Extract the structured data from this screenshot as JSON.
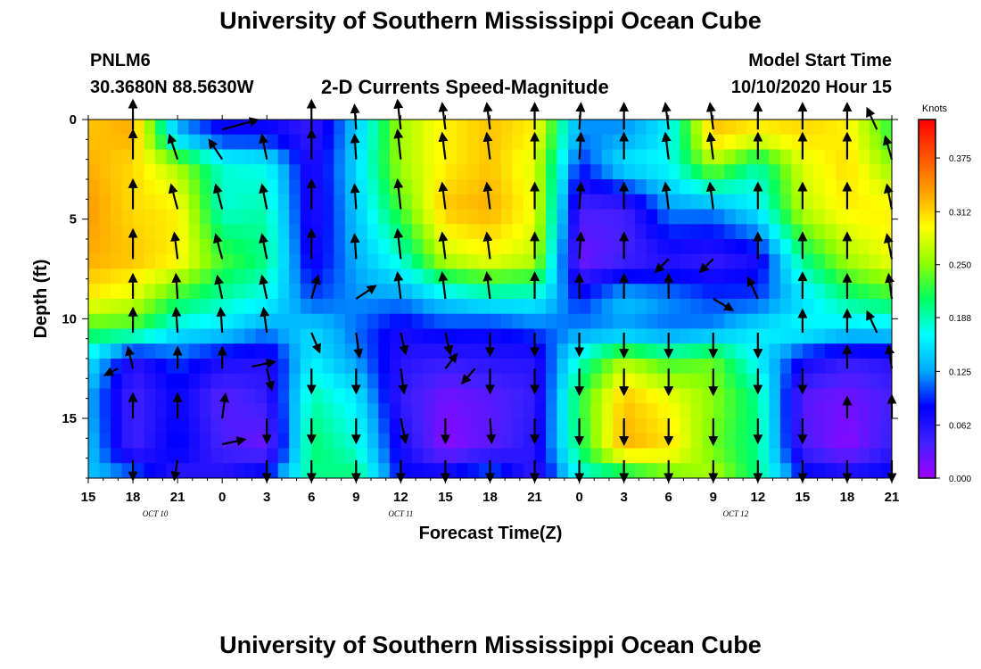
{
  "header": {
    "title": "University of Southern Mississippi Ocean Cube",
    "footer_title": "University of Southern Mississippi Ocean Cube",
    "station_id": "PNLM6",
    "station_coords": "30.3680N 88.5630W",
    "subtitle": "2-D Currents Speed-Magnitude",
    "model_start_label": "Model Start Time",
    "model_start_value": "10/10/2020 Hour 15"
  },
  "chart_data": {
    "type": "heatmap",
    "title": "2-D Currents Speed-Magnitude",
    "xlabel": "Forecast Time(Z)",
    "ylabel": "Depth (ft)",
    "x_tick_labels": [
      "15",
      "18",
      "21",
      "0",
      "3",
      "6",
      "9",
      "12",
      "15",
      "18",
      "21",
      "0",
      "3",
      "6",
      "9",
      "12",
      "15",
      "18",
      "21"
    ],
    "x_tick_hours": [
      0,
      3,
      6,
      9,
      12,
      15,
      18,
      21,
      24,
      27,
      30,
      33,
      36,
      39,
      42,
      45,
      48,
      51,
      54
    ],
    "date_labels": [
      {
        "label": "OCT 10",
        "hour": 4.5
      },
      {
        "label": "OCT 11",
        "hour": 21
      },
      {
        "label": "OCT 12",
        "hour": 43.5
      }
    ],
    "y_ticks": [
      0,
      5,
      10,
      15
    ],
    "ylim": [
      0,
      18
    ],
    "y_inverted": true,
    "xlim": [
      0,
      54
    ],
    "colorbar": {
      "unit": "Knots",
      "ticks": [
        "0.000",
        "0.062",
        "0.125",
        "0.188",
        "0.250",
        "0.312",
        "0.375"
      ],
      "min": 0.0,
      "max": 0.42,
      "colors": [
        "#a000ff",
        "#4020ff",
        "#0000ff",
        "#00aaff",
        "#00ffff",
        "#00ff60",
        "#90ff00",
        "#ffff00",
        "#ffa000",
        "#ff5000",
        "#ff0000"
      ]
    },
    "depth_bands": [
      0.75,
      2.25,
      4.5,
      7.0,
      9.0,
      10.6,
      12.0,
      14.0,
      16.5,
      17.6
    ],
    "time_hours": [
      0,
      3,
      6,
      9,
      12,
      15,
      18,
      21,
      24,
      27,
      30,
      33,
      36,
      39,
      42,
      45,
      48,
      51,
      54
    ],
    "speed_knots": [
      [
        0.32,
        0.33,
        0.13,
        0.08,
        0.08,
        0.05,
        0.14,
        0.26,
        0.3,
        0.32,
        0.3,
        0.12,
        0.12,
        0.16,
        0.32,
        0.3,
        0.31,
        0.3,
        0.22
      ],
      [
        0.33,
        0.31,
        0.26,
        0.18,
        0.17,
        0.06,
        0.15,
        0.26,
        0.3,
        0.32,
        0.28,
        0.09,
        0.16,
        0.17,
        0.26,
        0.19,
        0.28,
        0.31,
        0.25
      ],
      [
        0.34,
        0.31,
        0.3,
        0.18,
        0.19,
        0.06,
        0.14,
        0.23,
        0.32,
        0.33,
        0.29,
        0.04,
        0.04,
        0.12,
        0.12,
        0.16,
        0.27,
        0.3,
        0.3
      ],
      [
        0.33,
        0.32,
        0.3,
        0.23,
        0.2,
        0.07,
        0.13,
        0.18,
        0.27,
        0.29,
        0.27,
        0.02,
        0.04,
        0.06,
        0.05,
        0.07,
        0.2,
        0.26,
        0.29
      ],
      [
        0.3,
        0.28,
        0.22,
        0.19,
        0.17,
        0.1,
        0.12,
        0.12,
        0.15,
        0.17,
        0.17,
        0.09,
        0.14,
        0.12,
        0.1,
        0.1,
        0.15,
        0.2,
        0.22
      ],
      [
        0.22,
        0.22,
        0.16,
        0.15,
        0.12,
        0.15,
        0.11,
        0.07,
        0.09,
        0.08,
        0.1,
        0.12,
        0.12,
        0.11,
        0.12,
        0.16,
        0.17,
        0.15,
        0.15
      ],
      [
        0.16,
        0.06,
        0.1,
        0.07,
        0.06,
        0.16,
        0.12,
        0.06,
        0.05,
        0.06,
        0.06,
        0.18,
        0.26,
        0.22,
        0.24,
        0.16,
        0.08,
        0.05,
        0.06
      ],
      [
        0.13,
        0.04,
        0.08,
        0.03,
        0.05,
        0.19,
        0.16,
        0.05,
        0.02,
        0.03,
        0.05,
        0.22,
        0.32,
        0.29,
        0.25,
        0.2,
        0.03,
        0.02,
        0.04
      ],
      [
        0.14,
        0.04,
        0.09,
        0.04,
        0.02,
        0.21,
        0.18,
        0.07,
        0.01,
        0.03,
        0.06,
        0.21,
        0.33,
        0.31,
        0.24,
        0.2,
        0.04,
        0.01,
        0.05
      ],
      [
        0.14,
        0.1,
        0.06,
        0.06,
        0.08,
        0.2,
        0.2,
        0.08,
        0.07,
        0.1,
        0.05,
        0.18,
        0.22,
        0.25,
        0.26,
        0.2,
        0.08,
        0.06,
        0.08
      ]
    ],
    "arrows": [
      {
        "t": 3,
        "d": 0.5,
        "u": 0,
        "v": -1.8
      },
      {
        "t": 9,
        "d": 0.5,
        "u": 2.2,
        "v": -0.6
      },
      {
        "t": 15,
        "d": 0.5,
        "u": 0,
        "v": -1.8
      },
      {
        "t": 18,
        "d": 0.5,
        "u": -0.1,
        "v": -1.5
      },
      {
        "t": 21,
        "d": 0.5,
        "u": -0.2,
        "v": -1.8
      },
      {
        "t": 24,
        "d": 0.5,
        "u": -0.2,
        "v": -1.6
      },
      {
        "t": 27,
        "d": 0.5,
        "u": -0.2,
        "v": -1.6
      },
      {
        "t": 30,
        "d": 0.5,
        "u": 0,
        "v": -1.6
      },
      {
        "t": 33,
        "d": 0.5,
        "u": 0.1,
        "v": -1.6
      },
      {
        "t": 36,
        "d": 0.5,
        "u": 0,
        "v": -1.6
      },
      {
        "t": 39,
        "d": 0.5,
        "u": -0.2,
        "v": -1.6
      },
      {
        "t": 42,
        "d": 0.5,
        "u": -0.2,
        "v": -1.6
      },
      {
        "t": 45,
        "d": 0.5,
        "u": 0,
        "v": -1.6
      },
      {
        "t": 48,
        "d": 0.5,
        "u": 0,
        "v": -1.6
      },
      {
        "t": 51,
        "d": 0.5,
        "u": 0,
        "v": -1.6
      },
      {
        "t": 53,
        "d": 0.5,
        "u": -0.6,
        "v": -1.3
      },
      {
        "t": 3,
        "d": 2.0,
        "u": 0,
        "v": -1.8
      },
      {
        "t": 6,
        "d": 2.0,
        "u": -0.5,
        "v": -1.5
      },
      {
        "t": 9,
        "d": 2.0,
        "u": -0.8,
        "v": -1.2
      },
      {
        "t": 12,
        "d": 2.0,
        "u": -0.3,
        "v": -1.5
      },
      {
        "t": 15,
        "d": 2.0,
        "u": 0,
        "v": -1.8
      },
      {
        "t": 18,
        "d": 2.0,
        "u": -0.1,
        "v": -1.5
      },
      {
        "t": 21,
        "d": 2.0,
        "u": -0.2,
        "v": -1.8
      },
      {
        "t": 24,
        "d": 2.0,
        "u": -0.2,
        "v": -1.6
      },
      {
        "t": 27,
        "d": 2.0,
        "u": -0.2,
        "v": -1.6
      },
      {
        "t": 30,
        "d": 2.0,
        "u": 0,
        "v": -1.6
      },
      {
        "t": 33,
        "d": 2.0,
        "u": 0.1,
        "v": -1.6
      },
      {
        "t": 36,
        "d": 2.0,
        "u": 0,
        "v": -1.6
      },
      {
        "t": 39,
        "d": 2.0,
        "u": -0.2,
        "v": -1.6
      },
      {
        "t": 42,
        "d": 2.0,
        "u": -0.2,
        "v": -1.6
      },
      {
        "t": 45,
        "d": 2.0,
        "u": 0,
        "v": -1.6
      },
      {
        "t": 48,
        "d": 2.0,
        "u": 0,
        "v": -1.6
      },
      {
        "t": 51,
        "d": 2.0,
        "u": 0,
        "v": -1.6
      },
      {
        "t": 54,
        "d": 2.0,
        "u": -0.4,
        "v": -1.4
      },
      {
        "t": 3,
        "d": 4.5,
        "u": 0,
        "v": -1.8
      },
      {
        "t": 6,
        "d": 4.5,
        "u": -0.4,
        "v": -1.5
      },
      {
        "t": 9,
        "d": 4.5,
        "u": -0.4,
        "v": -1.5
      },
      {
        "t": 12,
        "d": 4.5,
        "u": -0.3,
        "v": -1.5
      },
      {
        "t": 15,
        "d": 4.5,
        "u": 0,
        "v": -1.8
      },
      {
        "t": 18,
        "d": 4.5,
        "u": -0.1,
        "v": -1.5
      },
      {
        "t": 21,
        "d": 4.5,
        "u": -0.2,
        "v": -1.8
      },
      {
        "t": 24,
        "d": 4.5,
        "u": -0.2,
        "v": -1.6
      },
      {
        "t": 27,
        "d": 4.5,
        "u": -0.2,
        "v": -1.6
      },
      {
        "t": 30,
        "d": 4.5,
        "u": 0,
        "v": -1.6
      },
      {
        "t": 33,
        "d": 4.5,
        "u": 0.1,
        "v": -1.6
      },
      {
        "t": 36,
        "d": 4.5,
        "u": 0,
        "v": -1.6
      },
      {
        "t": 39,
        "d": 4.5,
        "u": -0.2,
        "v": -1.6
      },
      {
        "t": 42,
        "d": 4.5,
        "u": -0.2,
        "v": -1.6
      },
      {
        "t": 45,
        "d": 4.5,
        "u": 0,
        "v": -1.6
      },
      {
        "t": 48,
        "d": 4.5,
        "u": 0,
        "v": -1.6
      },
      {
        "t": 51,
        "d": 4.5,
        "u": 0,
        "v": -1.6
      },
      {
        "t": 54,
        "d": 4.5,
        "u": -0.3,
        "v": -1.5
      },
      {
        "t": 3,
        "d": 7.0,
        "u": 0,
        "v": -1.8
      },
      {
        "t": 6,
        "d": 7.0,
        "u": -0.2,
        "v": -1.6
      },
      {
        "t": 9,
        "d": 7.0,
        "u": -0.4,
        "v": -1.5
      },
      {
        "t": 12,
        "d": 7.0,
        "u": -0.3,
        "v": -1.5
      },
      {
        "t": 15,
        "d": 7.0,
        "u": 0,
        "v": -1.8
      },
      {
        "t": 18,
        "d": 7.0,
        "u": -0.1,
        "v": -1.5
      },
      {
        "t": 21,
        "d": 7.0,
        "u": -0.2,
        "v": -1.8
      },
      {
        "t": 24,
        "d": 7.0,
        "u": -0.2,
        "v": -1.6
      },
      {
        "t": 27,
        "d": 7.0,
        "u": -0.2,
        "v": -1.6
      },
      {
        "t": 30,
        "d": 7.0,
        "u": 0,
        "v": -1.6
      },
      {
        "t": 33,
        "d": 7.0,
        "u": 0.1,
        "v": -1.6
      },
      {
        "t": 36,
        "d": 7.0,
        "u": 0,
        "v": -1.6
      },
      {
        "t": 39,
        "d": 7.0,
        "u": -0.8,
        "v": 0.8
      },
      {
        "t": 42,
        "d": 7.0,
        "u": -0.8,
        "v": 0.8
      },
      {
        "t": 45,
        "d": 7.0,
        "u": 0,
        "v": -1.6
      },
      {
        "t": 48,
        "d": 7.0,
        "u": 0,
        "v": -1.6
      },
      {
        "t": 51,
        "d": 7.0,
        "u": 0,
        "v": -1.6
      },
      {
        "t": 54,
        "d": 7.0,
        "u": -0.3,
        "v": -1.5
      },
      {
        "t": 3,
        "d": 9.0,
        "u": 0,
        "v": -1.5
      },
      {
        "t": 6,
        "d": 9.0,
        "u": -0.1,
        "v": -1.5
      },
      {
        "t": 9,
        "d": 9.0,
        "u": -0.3,
        "v": -1.4
      },
      {
        "t": 12,
        "d": 9.0,
        "u": -0.3,
        "v": -1.4
      },
      {
        "t": 15,
        "d": 9.0,
        "u": 0.4,
        "v": -1.4
      },
      {
        "t": 18,
        "d": 9.0,
        "u": 1.2,
        "v": -0.8
      },
      {
        "t": 21,
        "d": 9.0,
        "u": -0.2,
        "v": -1.6
      },
      {
        "t": 24,
        "d": 9.0,
        "u": -0.2,
        "v": -1.6
      },
      {
        "t": 27,
        "d": 9.0,
        "u": -0.2,
        "v": -1.6
      },
      {
        "t": 30,
        "d": 9.0,
        "u": 0,
        "v": -1.6
      },
      {
        "t": 33,
        "d": 9.0,
        "u": 0,
        "v": -1.5
      },
      {
        "t": 36,
        "d": 9.0,
        "u": 0,
        "v": -1.5
      },
      {
        "t": 39,
        "d": 9.0,
        "u": 0,
        "v": -1.5
      },
      {
        "t": 42,
        "d": 9.0,
        "u": 1.2,
        "v": 0.7
      },
      {
        "t": 45,
        "d": 9.0,
        "u": -0.6,
        "v": -1.3
      },
      {
        "t": 48,
        "d": 9.0,
        "u": 0,
        "v": -1.6
      },
      {
        "t": 51,
        "d": 9.0,
        "u": 0,
        "v": -1.5
      },
      {
        "t": 54,
        "d": 9.0,
        "u": -0.2,
        "v": -1.5
      },
      {
        "t": 3,
        "d": 10.7,
        "u": 0,
        "v": -1.5
      },
      {
        "t": 6,
        "d": 10.7,
        "u": -0.1,
        "v": -1.5
      },
      {
        "t": 9,
        "d": 10.7,
        "u": -0.1,
        "v": -1.5
      },
      {
        "t": 12,
        "d": 10.7,
        "u": -0.2,
        "v": -1.5
      },
      {
        "t": 15,
        "d": 10.7,
        "u": 0.5,
        "v": 1.2
      },
      {
        "t": 18,
        "d": 10.7,
        "u": 0.2,
        "v": 1.5
      },
      {
        "t": 21,
        "d": 10.7,
        "u": 0.3,
        "v": 1.3
      },
      {
        "t": 24,
        "d": 10.7,
        "u": 0.3,
        "v": 1.3
      },
      {
        "t": 27,
        "d": 10.7,
        "u": 0,
        "v": 1.4
      },
      {
        "t": 30,
        "d": 10.7,
        "u": 0,
        "v": 1.4
      },
      {
        "t": 33,
        "d": 10.7,
        "u": 0,
        "v": 1.4
      },
      {
        "t": 36,
        "d": 10.7,
        "u": 0,
        "v": 1.5
      },
      {
        "t": 39,
        "d": 10.7,
        "u": 0,
        "v": 1.5
      },
      {
        "t": 42,
        "d": 10.7,
        "u": 0,
        "v": 1.5
      },
      {
        "t": 45,
        "d": 10.7,
        "u": 0,
        "v": 1.5
      },
      {
        "t": 48,
        "d": 10.7,
        "u": 0,
        "v": -1.4
      },
      {
        "t": 51,
        "d": 10.7,
        "u": 0,
        "v": -1.4
      },
      {
        "t": 53,
        "d": 10.7,
        "u": -0.6,
        "v": -1.3
      },
      {
        "t": 2,
        "d": 12.5,
        "u": -0.8,
        "v": 0.4
      },
      {
        "t": 3,
        "d": 12.5,
        "u": -0.3,
        "v": -1.3
      },
      {
        "t": 6,
        "d": 12.5,
        "u": 0,
        "v": -1.3
      },
      {
        "t": 9,
        "d": 12.5,
        "u": 0,
        "v": -1.3
      },
      {
        "t": 11,
        "d": 12.4,
        "u": 1.4,
        "v": -0.3
      },
      {
        "t": 12,
        "d": 12.5,
        "u": 0.3,
        "v": 1.3
      },
      {
        "t": 15,
        "d": 12.5,
        "u": 0,
        "v": 1.5
      },
      {
        "t": 18,
        "d": 12.5,
        "u": 0,
        "v": 1.5
      },
      {
        "t": 21,
        "d": 12.5,
        "u": 0.2,
        "v": 1.5
      },
      {
        "t": 24,
        "d": 12.5,
        "u": 0.7,
        "v": -0.9
      },
      {
        "t": 26,
        "d": 12.5,
        "u": -0.8,
        "v": 0.9
      },
      {
        "t": 27,
        "d": 12.5,
        "u": 0,
        "v": 1.5
      },
      {
        "t": 30,
        "d": 12.5,
        "u": 0,
        "v": 1.5
      },
      {
        "t": 33,
        "d": 12.5,
        "u": 0,
        "v": 1.6
      },
      {
        "t": 36,
        "d": 12.5,
        "u": 0,
        "v": 1.6
      },
      {
        "t": 39,
        "d": 12.5,
        "u": 0,
        "v": 1.6
      },
      {
        "t": 42,
        "d": 12.5,
        "u": 0,
        "v": 1.6
      },
      {
        "t": 45,
        "d": 12.5,
        "u": 0,
        "v": 1.5
      },
      {
        "t": 48,
        "d": 12.5,
        "u": 0,
        "v": 1.5
      },
      {
        "t": 51,
        "d": 12.5,
        "u": 0,
        "v": -1.4
      },
      {
        "t": 54,
        "d": 12.5,
        "u": -0.2,
        "v": -1.4
      },
      {
        "t": 3,
        "d": 15.0,
        "u": 0,
        "v": -1.5
      },
      {
        "t": 6,
        "d": 15.0,
        "u": 0,
        "v": -1.5
      },
      {
        "t": 9,
        "d": 15.0,
        "u": 0.2,
        "v": -1.5
      },
      {
        "t": 12,
        "d": 15.0,
        "u": 0,
        "v": 1.5
      },
      {
        "t": 15,
        "d": 15.0,
        "u": 0,
        "v": 1.5
      },
      {
        "t": 18,
        "d": 15.0,
        "u": 0,
        "v": 1.5
      },
      {
        "t": 21,
        "d": 15.0,
        "u": 0.3,
        "v": 1.5
      },
      {
        "t": 24,
        "d": 15.0,
        "u": 0,
        "v": 1.5
      },
      {
        "t": 27,
        "d": 15.0,
        "u": 0.1,
        "v": 1.5
      },
      {
        "t": 30,
        "d": 15.0,
        "u": 0,
        "v": 1.5
      },
      {
        "t": 33,
        "d": 15.0,
        "u": 0,
        "v": 1.6
      },
      {
        "t": 36,
        "d": 15.0,
        "u": 0,
        "v": 1.6
      },
      {
        "t": 39,
        "d": 15.0,
        "u": 0,
        "v": 1.6
      },
      {
        "t": 42,
        "d": 15.0,
        "u": 0,
        "v": 1.6
      },
      {
        "t": 45,
        "d": 15.0,
        "u": 0,
        "v": 1.5
      },
      {
        "t": 48,
        "d": 15.0,
        "u": 0,
        "v": 1.5
      },
      {
        "t": 51,
        "d": 15.0,
        "u": 0,
        "v": -1.3
      },
      {
        "t": 54,
        "d": 15.0,
        "u": 0,
        "v": -1.4
      },
      {
        "t": 3,
        "d": 17.1,
        "u": 0,
        "v": 1.2
      },
      {
        "t": 6,
        "d": 17.1,
        "u": -0.2,
        "v": 1.2
      },
      {
        "t": 9,
        "d": 16.3,
        "u": 1.4,
        "v": -0.3
      },
      {
        "t": 12,
        "d": 17.1,
        "u": 0,
        "v": 1.3
      },
      {
        "t": 15,
        "d": 17.1,
        "u": 0,
        "v": 1.3
      },
      {
        "t": 18,
        "d": 17.1,
        "u": 0,
        "v": 1.3
      },
      {
        "t": 21,
        "d": 17.1,
        "u": 0,
        "v": 1.3
      },
      {
        "t": 24,
        "d": 17.1,
        "u": 0,
        "v": 1.3
      },
      {
        "t": 27,
        "d": 17.1,
        "u": 0,
        "v": 1.3
      },
      {
        "t": 30,
        "d": 17.1,
        "u": 0,
        "v": 1.3
      },
      {
        "t": 33,
        "d": 17.1,
        "u": 0,
        "v": 1.3
      },
      {
        "t": 36,
        "d": 17.1,
        "u": 0,
        "v": 1.3
      },
      {
        "t": 39,
        "d": 17.1,
        "u": 0,
        "v": 1.3
      },
      {
        "t": 42,
        "d": 17.1,
        "u": 0,
        "v": 1.3
      },
      {
        "t": 45,
        "d": 17.1,
        "u": 0,
        "v": 1.3
      },
      {
        "t": 48,
        "d": 17.1,
        "u": 0,
        "v": 1.3
      },
      {
        "t": 51,
        "d": 17.1,
        "u": 0,
        "v": 1.3
      },
      {
        "t": 54,
        "d": 17.1,
        "u": 0,
        "v": 1.3
      }
    ]
  }
}
